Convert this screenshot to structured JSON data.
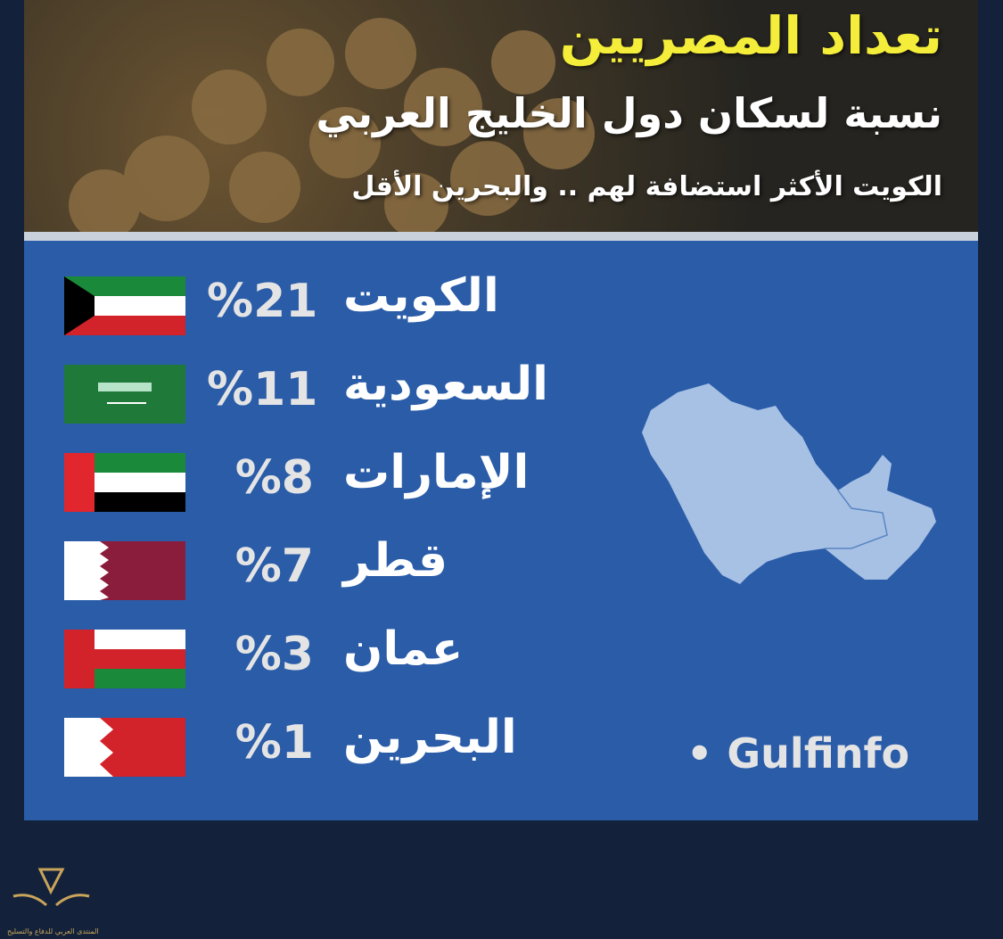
{
  "header": {
    "title": "تعداد المصريين",
    "subtitle": "نسبة لسكان دول الخليج العربي",
    "tagline": "الكويت الأكثر استضافة لهم .. والبحرين الأقل"
  },
  "rows": [
    {
      "country": "الكويت",
      "percent": "%21"
    },
    {
      "country": "السعودية",
      "percent": "%11"
    },
    {
      "country": "الإمارات",
      "percent": "%8"
    },
    {
      "country": "قطر",
      "percent": "%7"
    },
    {
      "country": "عمان",
      "percent": "%3"
    },
    {
      "country": "البحرين",
      "percent": "%1"
    }
  ],
  "source": "Gulfinfo",
  "watermark": "المنتدى العربي للدفاع والتسليح"
}
